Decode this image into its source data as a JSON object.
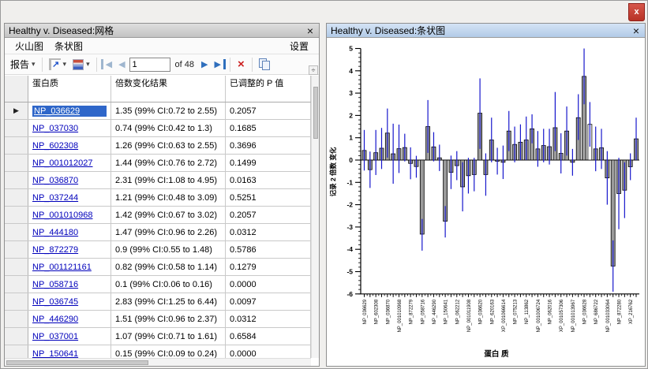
{
  "app": {
    "close_glyph": "x"
  },
  "icons": {
    "dropdown": "▾",
    "close": "×",
    "red_x": "×",
    "scroll_split": "÷",
    "row_marker": "▶",
    "journal_arrow": "↗",
    "nav_first": "◀",
    "nav_prev": "◀",
    "nav_next": "▶",
    "nav_last": "▶"
  },
  "left_panel": {
    "title": "Healthy v. Diseased:网格",
    "menu": {
      "items": [
        "火山图",
        "条状图"
      ],
      "settings": "设置"
    },
    "toolbar": {
      "report_label": "报告",
      "record_value": "1",
      "record_of": "of 48"
    },
    "table": {
      "headers": [
        "蛋白质",
        "倍数变化结果",
        "已调整的 P 值"
      ],
      "selected_row": 0,
      "rows": [
        {
          "protein": "NP_036629",
          "fold_change": "1.35 (99% CI:0.72 to 2.55)",
          "p_value": "0.2057"
        },
        {
          "protein": "NP_037030",
          "fold_change": "0.74 (99% CI:0.42 to 1.3)",
          "p_value": "0.1685"
        },
        {
          "protein": "NP_602308",
          "fold_change": "1.26 (99% CI:0.63 to 2.55)",
          "p_value": "0.3696"
        },
        {
          "protein": "NP_001012027",
          "fold_change": "1.44 (99% CI:0.76 to 2.72)",
          "p_value": "0.1499"
        },
        {
          "protein": "NP_036870",
          "fold_change": "2.31 (99% CI:1.08 to 4.95)",
          "p_value": "0.0163"
        },
        {
          "protein": "NP_037244",
          "fold_change": "1.21 (99% CI:0.48 to 3.09)",
          "p_value": "0.5251"
        },
        {
          "protein": "NP_001010968",
          "fold_change": "1.42 (99% CI:0.67 to 3.02)",
          "p_value": "0.2057"
        },
        {
          "protein": "NP_444180",
          "fold_change": "1.47 (99% CI:0.96 to 2.26)",
          "p_value": "0.0312"
        },
        {
          "protein": "NP_872279",
          "fold_change": "0.9 (99% CI:0.55 to 1.48)",
          "p_value": "0.5786"
        },
        {
          "protein": "NP_001121161",
          "fold_change": "0.82 (99% CI:0.58 to 1.14)",
          "p_value": "0.1279"
        },
        {
          "protein": "NP_058716",
          "fold_change": "0.1 (99% CI:0.06 to 0.16)",
          "p_value": "0.0000"
        },
        {
          "protein": "NP_036745",
          "fold_change": "2.83 (99% CI:1.25 to 6.44)",
          "p_value": "0.0097"
        },
        {
          "protein": "NP_446290",
          "fold_change": "1.51 (99% CI:0.96 to 2.37)",
          "p_value": "0.0312"
        },
        {
          "protein": "NP_037001",
          "fold_change": "1.07 (99% CI:0.71 to 1.61)",
          "p_value": "0.6584"
        },
        {
          "protein": "NP_150641",
          "fold_change": "0.15 (99% CI:0.09 to 0.24)",
          "p_value": "0.0000"
        }
      ]
    }
  },
  "right_panel": {
    "title": "Healthy v. Diseased:条状图"
  },
  "chart_data": {
    "type": "bar",
    "title": "",
    "xlabel": "蛋白 质",
    "ylabel": "记录 2 倍数 变化",
    "ylim": [
      -6,
      5
    ],
    "y_major_step": 1,
    "y_minor_step": 0.2,
    "grid": false,
    "legend": "none",
    "bar_fill": "#9a9a9a",
    "bar_stroke": "#000000",
    "error_color": "#1717cc",
    "highlight_index": 39,
    "highlight_fill": "#ffffff",
    "label_every": 2,
    "tick_labels": [
      "NP_036629",
      "NP_602308",
      "NP_036870",
      "NP_001010968",
      "NP_872279",
      "NP_058716",
      "NP_446290",
      "NP_150641",
      "NP_062212",
      "NP_001011908",
      "NP_036620",
      "NP_620163",
      "XP_001066614",
      "NP_075213",
      "NP_113862",
      "NP_001006724",
      "NP_062016",
      "XP_001057306",
      "NP_001013967",
      "NP_036628",
      "NP_686722",
      "NP_001033064",
      "NP_872280",
      "XP_216762"
    ],
    "values": [
      0.43,
      -0.43,
      0.33,
      0.53,
      1.21,
      0.28,
      0.51,
      0.56,
      -0.15,
      -0.29,
      -3.32,
      1.5,
      0.59,
      0.1,
      -2.74,
      -0.55,
      -0.25,
      -1.2,
      -0.7,
      -0.65,
      2.1,
      -0.65,
      0.9,
      -0.05,
      -0.1,
      1.3,
      0.7,
      0.8,
      0.9,
      1.4,
      0.5,
      0.65,
      0.6,
      1.45,
      0.3,
      1.3,
      -0.1,
      1.9,
      3.75,
      1.6,
      0.5,
      0.55,
      -0.8,
      -4.75,
      -1.5,
      -1.35,
      -0.3,
      0.95
    ],
    "ci_low": [
      -0.47,
      -1.25,
      -0.67,
      -0.4,
      0.11,
      -1.06,
      -0.58,
      -0.06,
      -0.86,
      -0.79,
      -4.06,
      0.32,
      -0.06,
      -0.49,
      -3.47,
      -1.3,
      -0.9,
      -2.3,
      -1.5,
      -1.4,
      0.5,
      -1.6,
      -0.1,
      -0.65,
      -0.85,
      0.4,
      -0.1,
      0.0,
      0.0,
      0.75,
      -0.3,
      -0.1,
      -0.2,
      0.4,
      -0.6,
      0.2,
      -0.7,
      0.9,
      2.5,
      0.6,
      -0.5,
      -0.4,
      -2.0,
      -5.9,
      -3.1,
      -2.6,
      -0.9,
      0.0
    ],
    "ci_high": [
      1.35,
      0.38,
      1.35,
      1.44,
      2.31,
      1.63,
      1.59,
      1.18,
      0.57,
      0.19,
      -2.64,
      2.69,
      1.25,
      0.69,
      -2.06,
      0.2,
      0.4,
      -0.1,
      0.1,
      0.1,
      3.66,
      0.3,
      1.9,
      0.55,
      0.65,
      2.2,
      1.5,
      1.6,
      1.95,
      2.05,
      1.3,
      1.4,
      1.4,
      3.05,
      1.2,
      2.4,
      0.5,
      2.95,
      5.0,
      2.6,
      1.5,
      1.4,
      0.4,
      -3.6,
      0.1,
      -0.1,
      0.3,
      1.9
    ]
  }
}
